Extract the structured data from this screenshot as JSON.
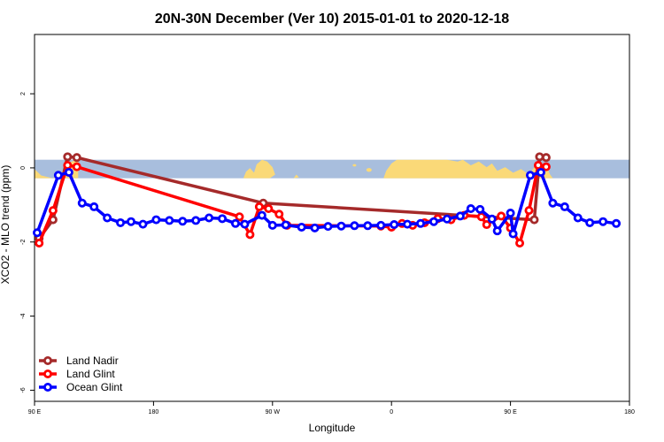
{
  "chart_data": {
    "type": "line",
    "title": "20N-30N December (Ver 10)   2015-01-01 to 2020-12-18",
    "xlabel": "Longitude",
    "ylabel": "XCO2 - MLO trend (ppm)",
    "xlim": [
      90,
      540
    ],
    "ylim": [
      -6.3,
      3.6
    ],
    "x_ticks": [
      {
        "value": 90,
        "label": "90 E"
      },
      {
        "value": 180,
        "label": "180"
      },
      {
        "value": 270,
        "label": "90 W"
      },
      {
        "value": 360,
        "label": "0"
      },
      {
        "value": 450,
        "label": "90 E"
      },
      {
        "value": 540,
        "label": "180"
      }
    ],
    "y_ticks": [
      {
        "value": 2,
        "label": "2"
      },
      {
        "value": 0,
        "label": "0"
      },
      {
        "value": -2,
        "label": "-2"
      },
      {
        "value": -4,
        "label": "-4"
      },
      {
        "value": -6,
        "label": "-6"
      }
    ],
    "map_band": {
      "ymin": -0.28,
      "ymax": 0.22,
      "ocean_color": "#a8bedd",
      "land_color": "#fad978"
    },
    "legend_position": "bottom-left",
    "series": [
      {
        "name": "Land Nadir",
        "color": "#a52a2a",
        "points": [
          [
            93.5,
            -1.9
          ],
          [
            104,
            -1.4
          ],
          [
            115,
            0.3
          ],
          [
            122,
            0.28
          ],
          [
            263,
            -0.95
          ],
          [
            468,
            -1.4
          ],
          [
            472,
            0.3
          ],
          [
            477,
            0.28
          ]
        ]
      },
      {
        "name": "Land Glint",
        "color": "#ff0000",
        "points": [
          [
            93.5,
            -2.03
          ],
          [
            104,
            -1.15
          ],
          [
            115,
            0.07
          ],
          [
            122,
            0.03
          ],
          [
            245,
            -1.32
          ],
          [
            253,
            -1.8
          ],
          [
            260,
            -1.05
          ],
          [
            267,
            -1.1
          ],
          [
            275,
            -1.25
          ],
          [
            281,
            -1.55
          ],
          [
            352,
            -1.57
          ],
          [
            360,
            -1.6
          ],
          [
            368,
            -1.5
          ],
          [
            376,
            -1.55
          ],
          [
            385,
            -1.48
          ],
          [
            395,
            -1.37
          ],
          [
            405,
            -1.4
          ],
          [
            415,
            -1.28
          ],
          [
            428,
            -1.32
          ],
          [
            432,
            -1.53
          ],
          [
            443,
            -1.3
          ],
          [
            450,
            -1.62
          ],
          [
            457,
            -2.03
          ],
          [
            464,
            -1.15
          ],
          [
            471,
            0.07
          ],
          [
            477,
            0.03
          ]
        ]
      },
      {
        "name": "Ocean Glint",
        "color": "#0000ff",
        "points": [
          [
            92,
            -1.75
          ],
          [
            108,
            -0.2
          ],
          [
            116,
            -0.12
          ],
          [
            126,
            -0.95
          ],
          [
            135,
            -1.05
          ],
          [
            145,
            -1.35
          ],
          [
            155,
            -1.48
          ],
          [
            163,
            -1.45
          ],
          [
            172,
            -1.52
          ],
          [
            182,
            -1.4
          ],
          [
            192,
            -1.42
          ],
          [
            202,
            -1.44
          ],
          [
            212,
            -1.42
          ],
          [
            222,
            -1.35
          ],
          [
            232,
            -1.37
          ],
          [
            242,
            -1.5
          ],
          [
            249,
            -1.52
          ],
          [
            262,
            -1.28
          ],
          [
            270,
            -1.55
          ],
          [
            280,
            -1.54
          ],
          [
            292,
            -1.6
          ],
          [
            302,
            -1.62
          ],
          [
            312,
            -1.58
          ],
          [
            322,
            -1.57
          ],
          [
            332,
            -1.56
          ],
          [
            342,
            -1.56
          ],
          [
            352,
            -1.55
          ],
          [
            362,
            -1.53
          ],
          [
            372,
            -1.52
          ],
          [
            382,
            -1.5
          ],
          [
            392,
            -1.45
          ],
          [
            402,
            -1.38
          ],
          [
            412,
            -1.3
          ],
          [
            420,
            -1.1
          ],
          [
            427,
            -1.12
          ],
          [
            436,
            -1.38
          ],
          [
            440,
            -1.7
          ],
          [
            450,
            -1.22
          ],
          [
            452,
            -1.78
          ],
          [
            465,
            -0.2
          ],
          [
            473,
            -0.12
          ],
          [
            482,
            -0.95
          ],
          [
            491,
            -1.05
          ],
          [
            501,
            -1.35
          ],
          [
            510,
            -1.48
          ],
          [
            520,
            -1.45
          ],
          [
            530,
            -1.5
          ]
        ]
      }
    ]
  }
}
